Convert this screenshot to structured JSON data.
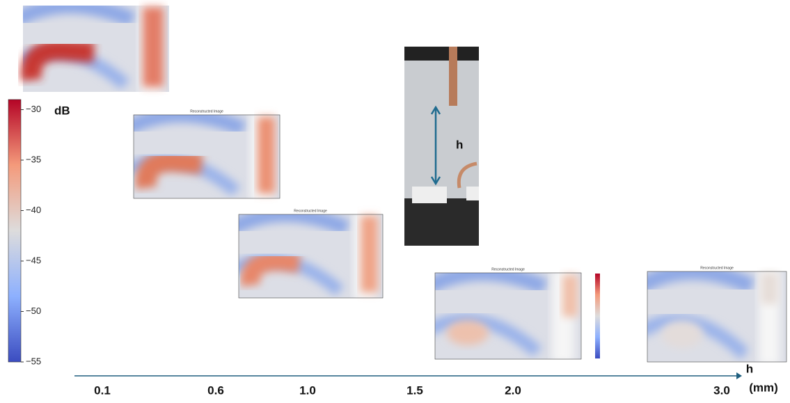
{
  "colorbar": {
    "label": "dB",
    "lim": [
      -55,
      -29
    ],
    "ticks": [
      {
        "value": -30,
        "label": "−30"
      },
      {
        "value": -35,
        "label": "−35"
      },
      {
        "value": -40,
        "label": "−40"
      },
      {
        "value": -45,
        "label": "−45"
      },
      {
        "value": -50,
        "label": "−50"
      },
      {
        "value": -55,
        "label": "−55"
      }
    ]
  },
  "axis": {
    "name": "h",
    "unit": "(mm)",
    "ticks": [
      "0.1",
      "0.6",
      "1.0",
      "1.5",
      "2.0",
      "3.0"
    ]
  },
  "images": [
    {
      "title": "Reconstructed Image"
    },
    {
      "title": "Reconstructed Image"
    },
    {
      "title": "Reconstructed Image"
    },
    {
      "title": "Reconstructed Image"
    }
  ],
  "photo": {
    "label": "h"
  }
}
